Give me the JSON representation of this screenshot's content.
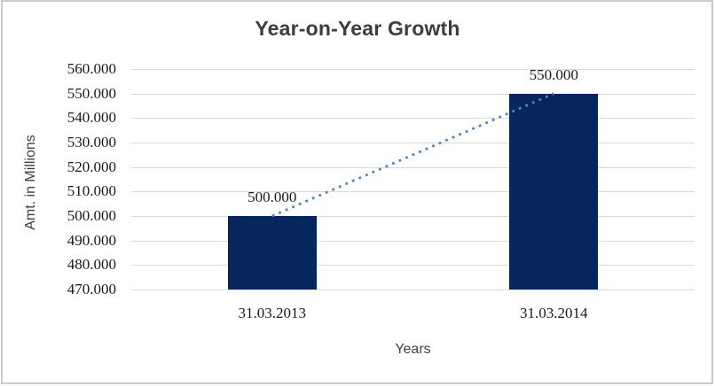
{
  "chart_data": {
    "type": "bar",
    "title": "Year-on-Year Growth",
    "xlabel": "Years",
    "ylabel": "Amt. in Millions",
    "categories": [
      "31.03.2013",
      "31.03.2014"
    ],
    "values": [
      500000,
      550000
    ],
    "data_labels": [
      "500.000",
      "550.000"
    ],
    "ylim": [
      470000,
      560000
    ],
    "ytick_step": 10000,
    "ytick_labels": [
      "470.000",
      "480.000",
      "490.000",
      "500.000",
      "510.000",
      "520.000",
      "530.000",
      "540.000",
      "550.000",
      "560.000"
    ],
    "grid": true,
    "legend": "none",
    "trendline": {
      "style": "dotted",
      "from_value": 500000,
      "to_value": 550000
    },
    "colors": {
      "bar": "#06265e",
      "trendline": "#4a86c8",
      "gridline": "#d9d9d9",
      "title_text": "#3d3d3d",
      "axis_title_text": "#3f3f3f",
      "tick_text": "#1a1a1a",
      "frame_border": "#cbcbcb"
    }
  }
}
